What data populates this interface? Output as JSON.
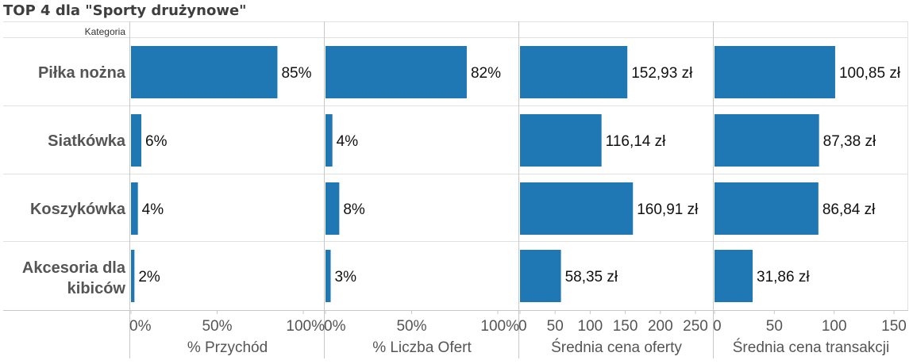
{
  "title": "TOP 4 dla \"Sporty drużynowe\"",
  "chart_data": [
    {
      "type": "bar",
      "orientation": "horizontal",
      "row_header": "Kategoria",
      "categories": [
        "Piłka nożna",
        "Siatkówka",
        "Koszykówka",
        "Akcesoria dla kibiców"
      ],
      "xlabel": "% Przychód",
      "values": [
        85,
        6,
        4,
        2
      ],
      "labels": [
        "85%",
        "6%",
        "4%",
        "2%"
      ],
      "xlim": [
        0,
        100
      ],
      "ticks": [
        "0%",
        "50%",
        "100%"
      ],
      "color": "#1f77b4"
    },
    {
      "type": "bar",
      "orientation": "horizontal",
      "categories": [
        "Piłka nożna",
        "Siatkówka",
        "Koszykówka",
        "Akcesoria dla kibiców"
      ],
      "xlabel": "% Liczba Ofert",
      "values": [
        82,
        4,
        8,
        3
      ],
      "labels": [
        "82%",
        "4%",
        "8%",
        "3%"
      ],
      "xlim": [
        0,
        100
      ],
      "ticks": [
        "0%",
        "50%",
        "100%"
      ],
      "color": "#1f77b4"
    },
    {
      "type": "bar",
      "orientation": "horizontal",
      "categories": [
        "Piłka nożna",
        "Siatkówka",
        "Koszykówka",
        "Akcesoria dla kibiców"
      ],
      "xlabel": "Średnia cena oferty",
      "values": [
        152.93,
        116.14,
        160.91,
        58.35
      ],
      "labels": [
        "152,93 zł",
        "116,14 zł",
        "160,91 zł",
        "58,35 zł"
      ],
      "xlim": [
        0,
        250
      ],
      "ticks": [
        "0",
        "50",
        "100",
        "150",
        "200",
        "250"
      ],
      "color": "#1f77b4"
    },
    {
      "type": "bar",
      "orientation": "horizontal",
      "categories": [
        "Piłka nożna",
        "Siatkówka",
        "Koszykówka",
        "Akcesoria dla kibiców"
      ],
      "xlabel": "Średnia cena transakcji",
      "values": [
        100.85,
        87.38,
        86.84,
        31.86
      ],
      "labels": [
        "100,85 zł",
        "87,38 zł",
        "86,84 zł",
        "31,86 zł"
      ],
      "xlim": [
        0,
        150
      ],
      "ticks": [
        "0",
        "50",
        "100",
        "150"
      ],
      "color": "#1f77b4"
    }
  ]
}
